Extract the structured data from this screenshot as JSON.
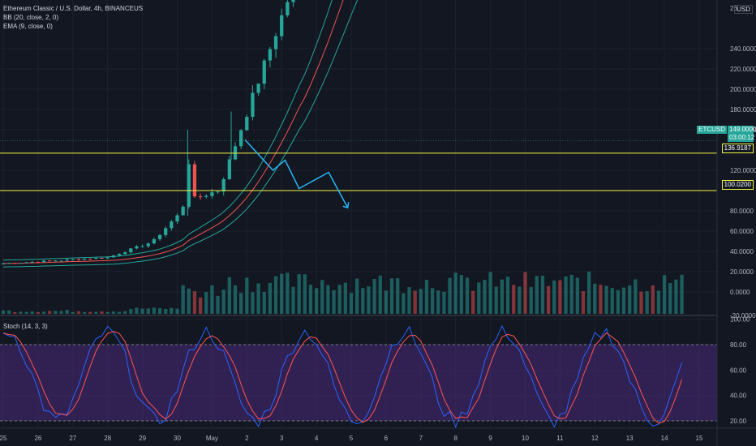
{
  "header": {
    "symbol_line": "Ethereum Classic / U.S. Dollar, 4h, BINANCEUS",
    "bb_label": "BB (20, close, 2, 0)",
    "ema_label": "EMA (9, close, 0)",
    "stoch_label": "Stoch (14, 3, 3)",
    "currency": "USD"
  },
  "price_axis": {
    "ticks": [
      "240.0000",
      "220.0000",
      "200.0000",
      "180.0000",
      "160.0000",
      "120.0000",
      "80.0000",
      "60.0000",
      "40.0000",
      "20.0000",
      "0.0000"
    ],
    "top_partial": "26",
    "bottom_partial": "-20.0000"
  },
  "stoch_axis": {
    "ticks": [
      "100.00",
      "80.00",
      "60.00",
      "40.00",
      "20.00"
    ]
  },
  "badges": {
    "symbol": "ETCUSD",
    "last_price": "149.0000",
    "countdown": "03:00:12",
    "line1": "136.9187",
    "line2": "100.0200"
  },
  "time_axis": {
    "labels": [
      "25",
      "26",
      "27",
      "28",
      "29",
      "30",
      "May",
      "2",
      "3",
      "4",
      "5",
      "6",
      "7",
      "8",
      "9",
      "10",
      "11",
      "12",
      "13",
      "14",
      "15"
    ]
  },
  "colors": {
    "up": "#26a69a",
    "down": "#ef5350",
    "level": "#f5f542",
    "projection": "#29b6f6",
    "stoch_k": "#2962ff",
    "stoch_d": "#ff5252",
    "stoch_band": "#4a2a7a",
    "bb_basis": "#ef5350",
    "bb_band": "#26a69a"
  },
  "chart_data": {
    "type": "candlestick",
    "timeframe": "4h",
    "horizontal_levels": [
      136.9187,
      100.02
    ],
    "last_price": 149.0,
    "day_starts": [
      "25",
      "26",
      "27",
      "28",
      "29",
      "30",
      "May",
      "2",
      "3",
      "4",
      "5",
      "6",
      "7",
      "8",
      "9",
      "10",
      "11",
      "12",
      "13",
      "14",
      "15"
    ],
    "price_range": [
      -20,
      260
    ],
    "projection_path": [
      [
        6.95,
        150
      ],
      [
        7.75,
        120
      ],
      [
        8.1,
        130
      ],
      [
        8.5,
        102
      ],
      [
        9.35,
        118
      ],
      [
        9.9,
        83
      ]
    ],
    "stoch_range": [
      0,
      100
    ],
    "stoch_bands": [
      20,
      80
    ]
  }
}
